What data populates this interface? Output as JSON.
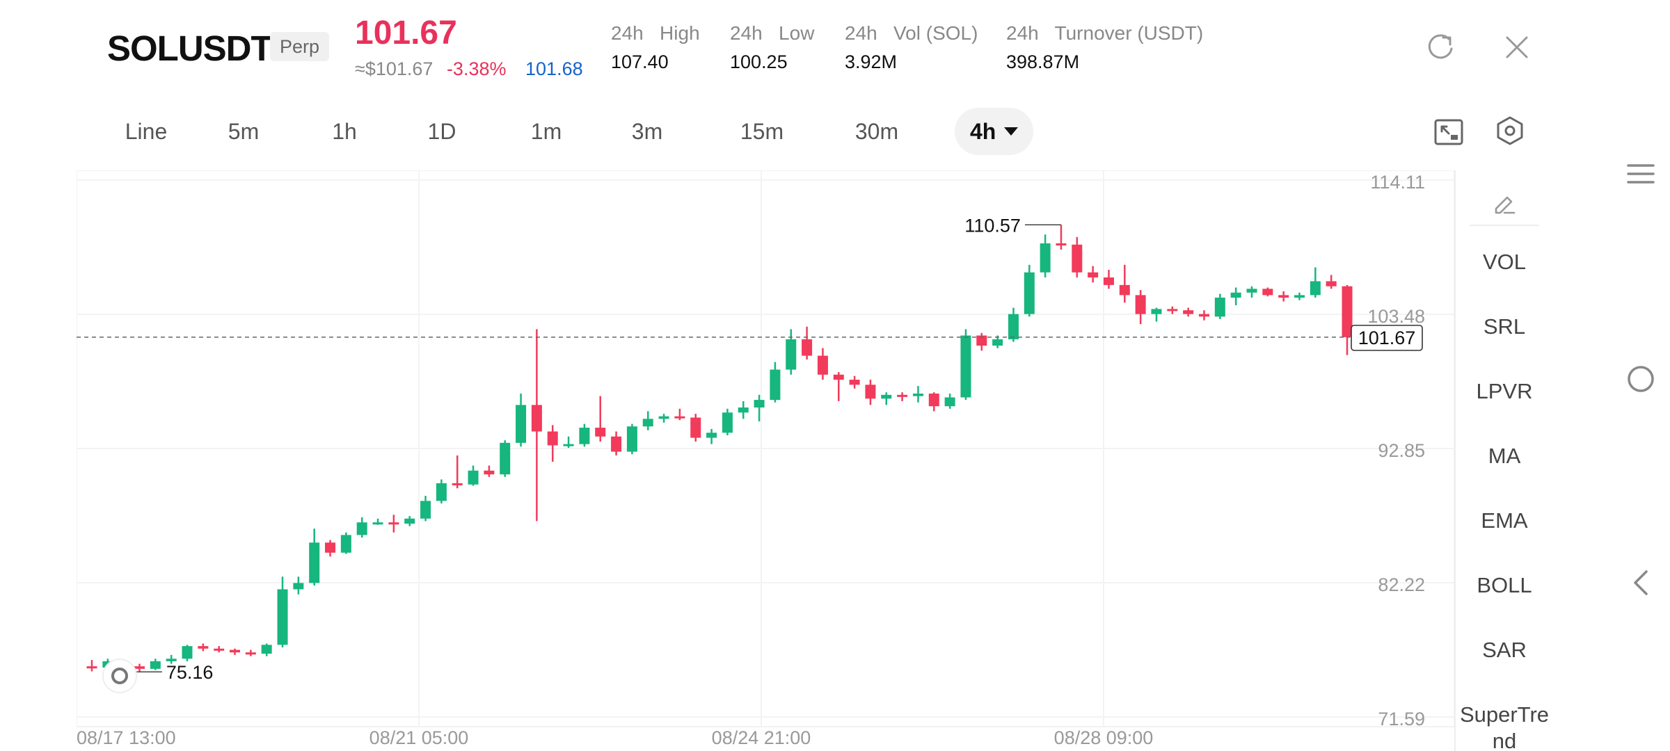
{
  "header": {
    "symbol": "SOLUSDT",
    "tag": "Perp",
    "last_price": "101.67",
    "usd_price": "≈$101.67",
    "change_pct": "-3.38%",
    "mark_price": "101.68",
    "stats": [
      {
        "label": "24h   High",
        "value": "107.40"
      },
      {
        "label": "24h   Low",
        "value": "100.25"
      },
      {
        "label": "24h   Vol (SOL)",
        "value": "3.92M"
      },
      {
        "label": "24h   Turnover (USDT)",
        "value": "398.87M"
      }
    ],
    "icons": [
      "refresh-icon",
      "close-icon"
    ]
  },
  "timeframes": [
    "Line",
    "5m",
    "1h",
    "1D",
    "1m",
    "3m",
    "15m",
    "30m"
  ],
  "selected_timeframe": "4h",
  "toolbar_icons": [
    "fullscreen-icon",
    "settings-icon"
  ],
  "indicators": [
    "VOL",
    "SRL",
    "LPVR",
    "MA",
    "EMA",
    "BOLL",
    "SAR",
    "SuperTrend"
  ],
  "nav_icons": [
    "menu-icon",
    "home-circle-icon",
    "back-chevron-icon"
  ],
  "colors": {
    "up": "#16b67e",
    "down": "#f23a5b",
    "accent_red": "#e8315b",
    "accent_blue": "#1463cc"
  },
  "chart_data": {
    "type": "candlestick",
    "y_ticks": [
      "114.11",
      "103.48",
      "92.85",
      "82.22",
      "71.59"
    ],
    "ylim": [
      71.59,
      114.11
    ],
    "x_ticks": [
      "08/17 13:00",
      "08/21 05:00",
      "08/24 21:00",
      "08/28 09:00"
    ],
    "last_price_label": "101.67",
    "high_label": "110.57",
    "low_label": "75.16",
    "candles": [
      [
        75.6,
        76.1,
        75.2,
        75.5
      ],
      [
        75.5,
        76.2,
        75.16,
        76.0
      ],
      [
        76.0,
        76.1,
        75.3,
        75.6
      ],
      [
        75.6,
        75.8,
        75.2,
        75.4
      ],
      [
        75.4,
        76.2,
        75.3,
        76.0
      ],
      [
        76.0,
        76.5,
        75.8,
        76.2
      ],
      [
        76.2,
        77.3,
        76.0,
        77.2
      ],
      [
        77.2,
        77.4,
        76.8,
        77.0
      ],
      [
        77.0,
        77.2,
        76.7,
        76.9
      ],
      [
        76.9,
        77.0,
        76.5,
        76.7
      ],
      [
        76.7,
        76.9,
        76.4,
        76.6
      ],
      [
        76.6,
        77.4,
        76.4,
        77.3
      ],
      [
        77.3,
        82.7,
        77.1,
        81.7
      ],
      [
        81.7,
        82.7,
        81.3,
        82.2
      ],
      [
        82.2,
        86.5,
        82.0,
        85.4
      ],
      [
        85.4,
        85.6,
        84.3,
        84.6
      ],
      [
        84.6,
        86.2,
        84.5,
        86.0
      ],
      [
        86.0,
        87.4,
        85.8,
        87.0
      ],
      [
        87.0,
        87.3,
        86.8,
        87.0
      ],
      [
        87.0,
        87.6,
        86.2,
        86.9
      ],
      [
        86.9,
        87.5,
        86.7,
        87.3
      ],
      [
        87.3,
        89.1,
        87.1,
        88.7
      ],
      [
        88.7,
        90.4,
        88.5,
        90.1
      ],
      [
        90.1,
        92.3,
        89.7,
        90.0
      ],
      [
        90.0,
        91.5,
        89.9,
        91.1
      ],
      [
        91.1,
        91.5,
        90.6,
        90.8
      ],
      [
        90.8,
        93.5,
        90.6,
        93.3
      ],
      [
        93.3,
        97.2,
        93.0,
        96.3
      ],
      [
        96.3,
        102.3,
        87.1,
        94.2
      ],
      [
        94.2,
        94.7,
        91.8,
        93.1
      ],
      [
        93.1,
        93.8,
        92.9,
        93.2
      ],
      [
        93.2,
        94.8,
        93.0,
        94.5
      ],
      [
        94.5,
        97.0,
        93.4,
        93.8
      ],
      [
        93.8,
        94.2,
        92.3,
        92.6
      ],
      [
        92.6,
        94.8,
        92.4,
        94.6
      ],
      [
        94.6,
        95.8,
        94.3,
        95.2
      ],
      [
        95.2,
        95.6,
        94.9,
        95.4
      ],
      [
        95.4,
        96.0,
        95.1,
        95.3
      ],
      [
        95.3,
        95.6,
        93.4,
        93.7
      ],
      [
        93.7,
        94.4,
        93.2,
        94.1
      ],
      [
        94.1,
        96.0,
        93.9,
        95.7
      ],
      [
        95.7,
        96.6,
        95.2,
        96.1
      ],
      [
        96.1,
        97.1,
        95.0,
        96.7
      ],
      [
        96.7,
        99.7,
        96.5,
        99.1
      ],
      [
        99.1,
        102.3,
        98.7,
        101.5
      ],
      [
        101.5,
        102.5,
        99.9,
        100.2
      ],
      [
        100.2,
        100.8,
        98.3,
        98.7
      ],
      [
        98.7,
        98.9,
        96.6,
        98.3
      ],
      [
        98.3,
        98.6,
        97.6,
        97.9
      ],
      [
        97.9,
        98.3,
        96.3,
        96.8
      ],
      [
        96.8,
        97.3,
        96.3,
        97.1
      ],
      [
        97.1,
        97.3,
        96.6,
        97.0
      ],
      [
        97.0,
        97.8,
        96.5,
        97.2
      ],
      [
        97.2,
        97.3,
        95.8,
        96.2
      ],
      [
        96.2,
        97.2,
        96.0,
        96.9
      ],
      [
        96.9,
        102.3,
        96.7,
        101.8
      ],
      [
        101.8,
        102.0,
        100.6,
        101.0
      ],
      [
        101.0,
        101.8,
        100.8,
        101.5
      ],
      [
        101.5,
        104.0,
        101.3,
        103.5
      ],
      [
        103.5,
        107.4,
        103.3,
        106.8
      ],
      [
        106.8,
        109.8,
        106.4,
        109.1
      ],
      [
        109.1,
        110.57,
        108.6,
        109.0
      ],
      [
        109.0,
        109.6,
        106.4,
        106.8
      ],
      [
        106.8,
        107.3,
        106.0,
        106.4
      ],
      [
        106.4,
        107.0,
        105.5,
        105.8
      ],
      [
        105.8,
        107.4,
        104.4,
        105.0
      ],
      [
        105.0,
        105.4,
        102.7,
        103.5
      ],
      [
        103.5,
        104.0,
        102.9,
        103.9
      ],
      [
        103.9,
        104.1,
        103.5,
        103.8
      ],
      [
        103.8,
        104.0,
        103.3,
        103.5
      ],
      [
        103.5,
        103.8,
        103.0,
        103.3
      ],
      [
        103.3,
        105.1,
        103.1,
        104.8
      ],
      [
        104.8,
        105.6,
        104.2,
        105.2
      ],
      [
        105.2,
        105.7,
        104.8,
        105.5
      ],
      [
        105.5,
        105.6,
        104.9,
        105.0
      ],
      [
        105.0,
        105.3,
        104.5,
        104.8
      ],
      [
        104.8,
        105.2,
        104.6,
        105.0
      ],
      [
        105.0,
        107.2,
        104.8,
        106.1
      ],
      [
        106.1,
        106.6,
        105.5,
        105.7
      ],
      [
        105.7,
        105.8,
        100.25,
        101.67
      ]
    ]
  }
}
